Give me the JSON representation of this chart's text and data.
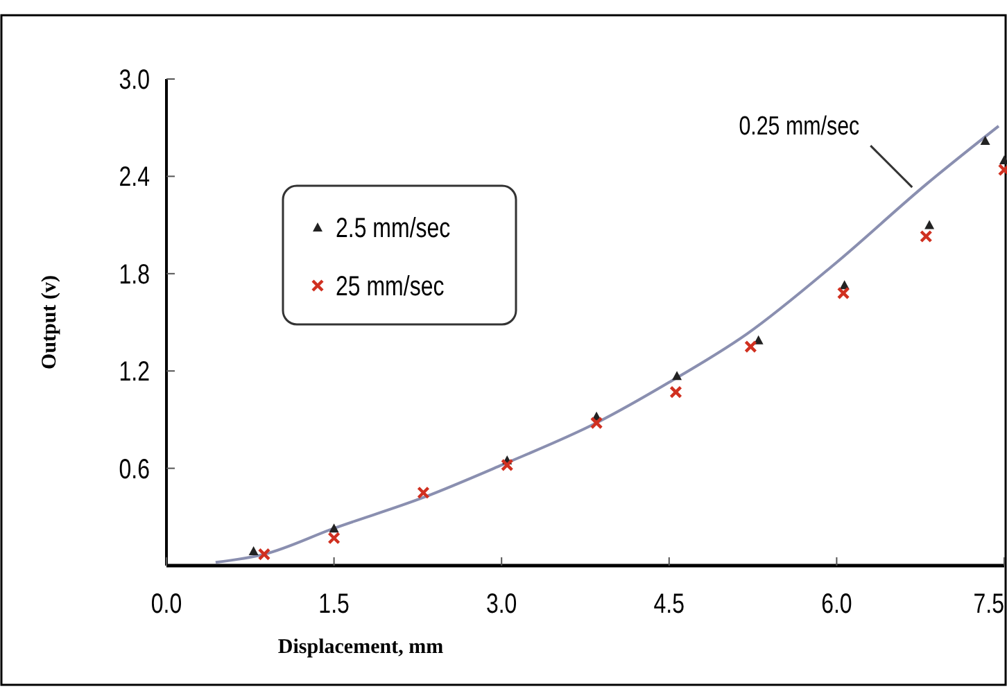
{
  "chart_data": {
    "type": "scatter",
    "xlabel": "Displacement, mm",
    "ylabel": "Output (v)",
    "xlim": [
      0,
      7.5
    ],
    "ylim": [
      0,
      3.0
    ],
    "xticks": [
      {
        "value": 0,
        "label": "0.0"
      },
      1.5,
      {
        "value": 3,
        "label": "3.0"
      },
      4.5,
      {
        "value": 6,
        "label": "6.0"
      },
      7.5
    ],
    "yticks": [
      0.6,
      1.2,
      1.8,
      2.4,
      {
        "value": 3,
        "label": "3.0"
      }
    ],
    "legend": "top left",
    "grid": false,
    "series": [
      {
        "name": "0.25 mm/sec",
        "type": "line",
        "color": "#8a8fb0",
        "line_style": "solid",
        "marker": "none",
        "x": [
          0.44,
          0.875,
          1.5,
          2.3,
          3.0,
          3.85,
          4.5,
          5.2,
          6.0,
          6.8,
          7.45
        ],
        "values": [
          0.02,
          0.07,
          0.23,
          0.42,
          0.62,
          0.88,
          1.13,
          1.43,
          1.87,
          2.35,
          2.71
        ]
      },
      {
        "name": "2.5 mm/sec",
        "color": "#222222",
        "marker": "triangle",
        "x": [
          0.78,
          1.5,
          2.3,
          3.05,
          3.85,
          4.57,
          5.3,
          6.07,
          6.83,
          7.33,
          7.5
        ],
        "values": [
          0.09,
          0.23,
          null,
          0.65,
          0.92,
          1.17,
          1.39,
          1.73,
          2.1,
          2.62,
          2.5
        ]
      },
      {
        "name": "25 mm/sec",
        "color": "#d03020",
        "marker": "cross",
        "x": [
          0.875,
          1.5,
          2.3,
          3.05,
          3.85,
          4.56,
          5.23,
          6.06,
          6.8,
          7.5
        ],
        "values": [
          0.07,
          0.17,
          0.45,
          0.62,
          0.88,
          1.07,
          1.35,
          1.68,
          2.03,
          2.44
        ]
      }
    ]
  }
}
